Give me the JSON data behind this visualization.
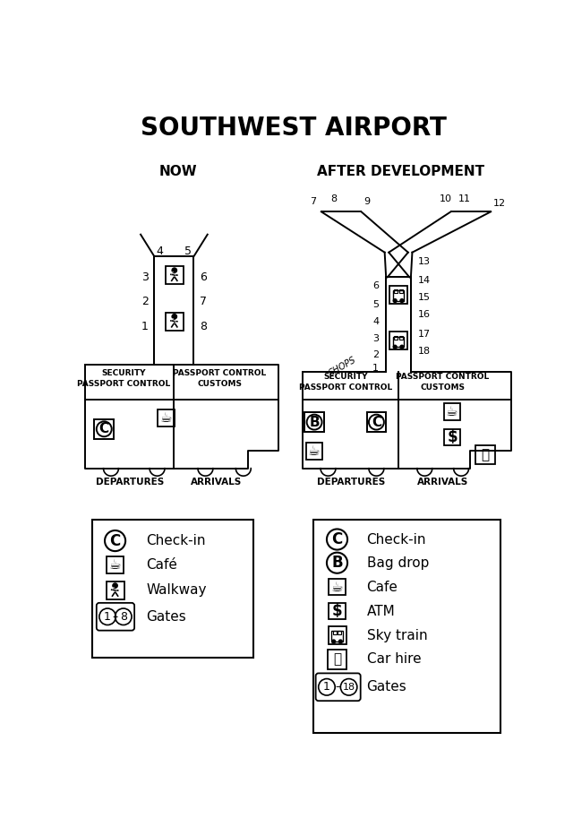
{
  "title": "SOUTHWEST AIRPORT",
  "now_label": "NOW",
  "after_label": "AFTER DEVELOPMENT",
  "bg": "#ffffff",
  "lc": "#000000"
}
